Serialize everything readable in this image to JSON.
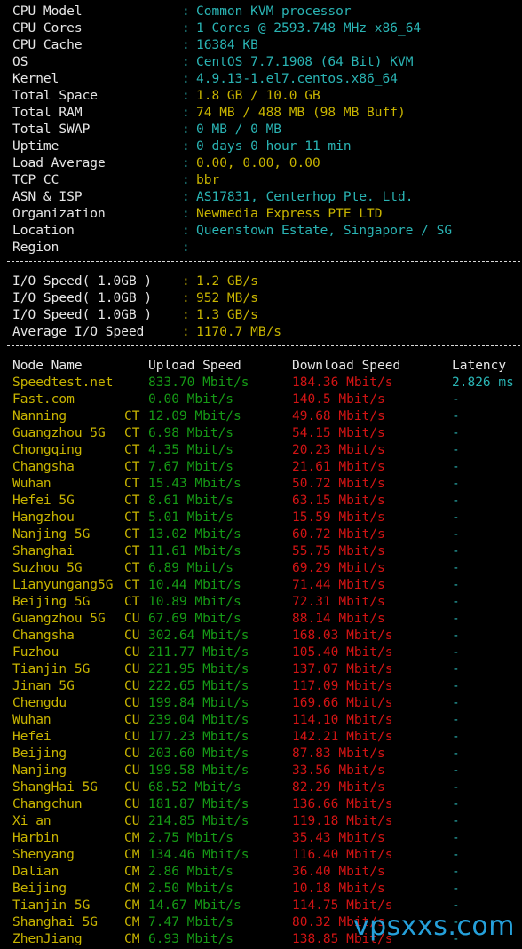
{
  "system_info": [
    {
      "label": "CPU Model",
      "value": "Common KVM processor",
      "color": "cyan"
    },
    {
      "label": "CPU Cores",
      "value": "1 Cores @ 2593.748 MHz x86_64",
      "color": "cyan"
    },
    {
      "label": "CPU Cache",
      "value": "16384 KB",
      "color": "cyan"
    },
    {
      "label": "OS",
      "value": "CentOS 7.7.1908 (64 Bit) KVM",
      "color": "cyan"
    },
    {
      "label": "Kernel",
      "value": "4.9.13-1.el7.centos.x86_64",
      "color": "cyan"
    },
    {
      "label": "Total Space",
      "value": "1.8 GB / 10.0 GB",
      "color": "yellow"
    },
    {
      "label": "Total RAM",
      "value": "74 MB / 488 MB (98 MB Buff)",
      "color": "yellow"
    },
    {
      "label": "Total SWAP",
      "value": "0 MB / 0 MB",
      "color": "cyan"
    },
    {
      "label": "Uptime",
      "value": "0 days 0 hour 11 min",
      "color": "cyan"
    },
    {
      "label": "Load Average",
      "value": "0.00, 0.00, 0.00",
      "color": "yellow"
    },
    {
      "label": "TCP CC",
      "value": "bbr",
      "color": "yellow"
    },
    {
      "label": "ASN & ISP",
      "value": "AS17831, Centerhop Pte. Ltd.",
      "color": "cyan"
    },
    {
      "label": "Organization",
      "value": "Newmedia Express PTE LTD",
      "color": "yellow"
    },
    {
      "label": "Location",
      "value": "Queenstown Estate, Singapore / SG",
      "color": "cyan"
    },
    {
      "label": "Region",
      "value": "",
      "color": "cyan"
    }
  ],
  "io_info": [
    {
      "label": "I/O Speed( 1.0GB )",
      "value": "1.2 GB/s"
    },
    {
      "label": "I/O Speed( 1.0GB )",
      "value": "952 MB/s"
    },
    {
      "label": "I/O Speed( 1.0GB )",
      "value": "1.3 GB/s"
    },
    {
      "label": "Average I/O Speed",
      "value": "1170.7 MB/s"
    }
  ],
  "speed_table": {
    "headers": {
      "node": "Node Name",
      "upload": "Upload Speed",
      "download": "Download Speed",
      "latency": "Latency"
    },
    "rows": [
      {
        "node": "Speedtest.net",
        "isp": "",
        "upload": "833.70 Mbit/s",
        "download": "184.36 Mbit/s",
        "latency": "2.826 ms"
      },
      {
        "node": "Fast.com",
        "isp": "",
        "upload": "0.00 Mbit/s",
        "download": "140.5 Mbit/s",
        "latency": "-"
      },
      {
        "node": "Nanning",
        "isp": "CT",
        "upload": "12.09 Mbit/s",
        "download": "49.68 Mbit/s",
        "latency": "-"
      },
      {
        "node": "Guangzhou 5G",
        "isp": "CT",
        "upload": "6.98 Mbit/s",
        "download": "54.15 Mbit/s",
        "latency": "-"
      },
      {
        "node": "Chongqing",
        "isp": "CT",
        "upload": "4.35 Mbit/s",
        "download": "20.23 Mbit/s",
        "latency": "-"
      },
      {
        "node": "Changsha",
        "isp": "CT",
        "upload": "7.67 Mbit/s",
        "download": "21.61 Mbit/s",
        "latency": "-"
      },
      {
        "node": "Wuhan",
        "isp": "CT",
        "upload": "15.43 Mbit/s",
        "download": "50.72 Mbit/s",
        "latency": "-"
      },
      {
        "node": "Hefei 5G",
        "isp": "CT",
        "upload": "8.61 Mbit/s",
        "download": "63.15 Mbit/s",
        "latency": "-"
      },
      {
        "node": "Hangzhou",
        "isp": "CT",
        "upload": "5.01 Mbit/s",
        "download": "15.59 Mbit/s",
        "latency": "-"
      },
      {
        "node": "Nanjing 5G",
        "isp": "CT",
        "upload": "13.02 Mbit/s",
        "download": "60.72 Mbit/s",
        "latency": "-"
      },
      {
        "node": "Shanghai",
        "isp": "CT",
        "upload": "11.61 Mbit/s",
        "download": "55.75 Mbit/s",
        "latency": "-"
      },
      {
        "node": "Suzhou 5G",
        "isp": "CT",
        "upload": "6.89 Mbit/s",
        "download": "69.29 Mbit/s",
        "latency": "-"
      },
      {
        "node": "Lianyungang5G",
        "isp": "CT",
        "upload": "10.44 Mbit/s",
        "download": "71.44 Mbit/s",
        "latency": "-"
      },
      {
        "node": "Beijing 5G",
        "isp": "CT",
        "upload": "10.89 Mbit/s",
        "download": "72.31 Mbit/s",
        "latency": "-"
      },
      {
        "node": "Guangzhou 5G",
        "isp": "CU",
        "upload": "67.69 Mbit/s",
        "download": "88.14 Mbit/s",
        "latency": "-"
      },
      {
        "node": "Changsha",
        "isp": "CU",
        "upload": "302.64 Mbit/s",
        "download": "168.03 Mbit/s",
        "latency": "-"
      },
      {
        "node": "Fuzhou",
        "isp": "CU",
        "upload": "211.77 Mbit/s",
        "download": "105.40 Mbit/s",
        "latency": "-"
      },
      {
        "node": "Tianjin 5G",
        "isp": "CU",
        "upload": "221.95 Mbit/s",
        "download": "137.07 Mbit/s",
        "latency": "-"
      },
      {
        "node": "Jinan 5G",
        "isp": "CU",
        "upload": "222.65 Mbit/s",
        "download": "117.09 Mbit/s",
        "latency": "-"
      },
      {
        "node": "Chengdu",
        "isp": "CU",
        "upload": "199.84 Mbit/s",
        "download": "169.66 Mbit/s",
        "latency": "-"
      },
      {
        "node": "Wuhan",
        "isp": "CU",
        "upload": "239.04 Mbit/s",
        "download": "114.10 Mbit/s",
        "latency": "-"
      },
      {
        "node": "Hefei",
        "isp": "CU",
        "upload": "177.23 Mbit/s",
        "download": "142.21 Mbit/s",
        "latency": "-"
      },
      {
        "node": "Beijing",
        "isp": "CU",
        "upload": "203.60 Mbit/s",
        "download": "87.83 Mbit/s",
        "latency": "-"
      },
      {
        "node": "Nanjing",
        "isp": "CU",
        "upload": "199.58 Mbit/s",
        "download": "33.56 Mbit/s",
        "latency": "-"
      },
      {
        "node": "ShangHai 5G",
        "isp": "CU",
        "upload": "68.52 Mbit/s",
        "download": "82.29 Mbit/s",
        "latency": "-"
      },
      {
        "node": "Changchun",
        "isp": "CU",
        "upload": "181.87 Mbit/s",
        "download": "136.66 Mbit/s",
        "latency": "-"
      },
      {
        "node": "Xi an",
        "isp": "CU",
        "upload": "214.85 Mbit/s",
        "download": "119.18 Mbit/s",
        "latency": "-"
      },
      {
        "node": "Harbin",
        "isp": "CM",
        "upload": "2.75 Mbit/s",
        "download": "35.43 Mbit/s",
        "latency": "-"
      },
      {
        "node": "Shenyang",
        "isp": "CM",
        "upload": "134.46 Mbit/s",
        "download": "116.40 Mbit/s",
        "latency": "-"
      },
      {
        "node": "Dalian",
        "isp": "CM",
        "upload": "2.86 Mbit/s",
        "download": "36.40 Mbit/s",
        "latency": "-"
      },
      {
        "node": "Beijing",
        "isp": "CM",
        "upload": "2.50 Mbit/s",
        "download": "10.18 Mbit/s",
        "latency": "-"
      },
      {
        "node": "Tianjin 5G",
        "isp": "CM",
        "upload": "14.67 Mbit/s",
        "download": "114.75 Mbit/s",
        "latency": "-"
      },
      {
        "node": "Shanghai 5G",
        "isp": "CM",
        "upload": "7.47 Mbit/s",
        "download": "80.32 Mbit/s",
        "latency": "-"
      },
      {
        "node": "ZhenJiang",
        "isp": "CM",
        "upload": "6.93 Mbit/s",
        "download": "138.85 Mbit/s",
        "latency": "-"
      }
    ]
  },
  "watermark": "vpsxxs.com",
  "colors": {
    "background": "#000000",
    "label": "#e6e6e6",
    "cyan": "#2ab4b4",
    "yellow": "#c8b400",
    "green": "#169a16",
    "red": "#d21414",
    "watermark": "#28a9e6"
  }
}
